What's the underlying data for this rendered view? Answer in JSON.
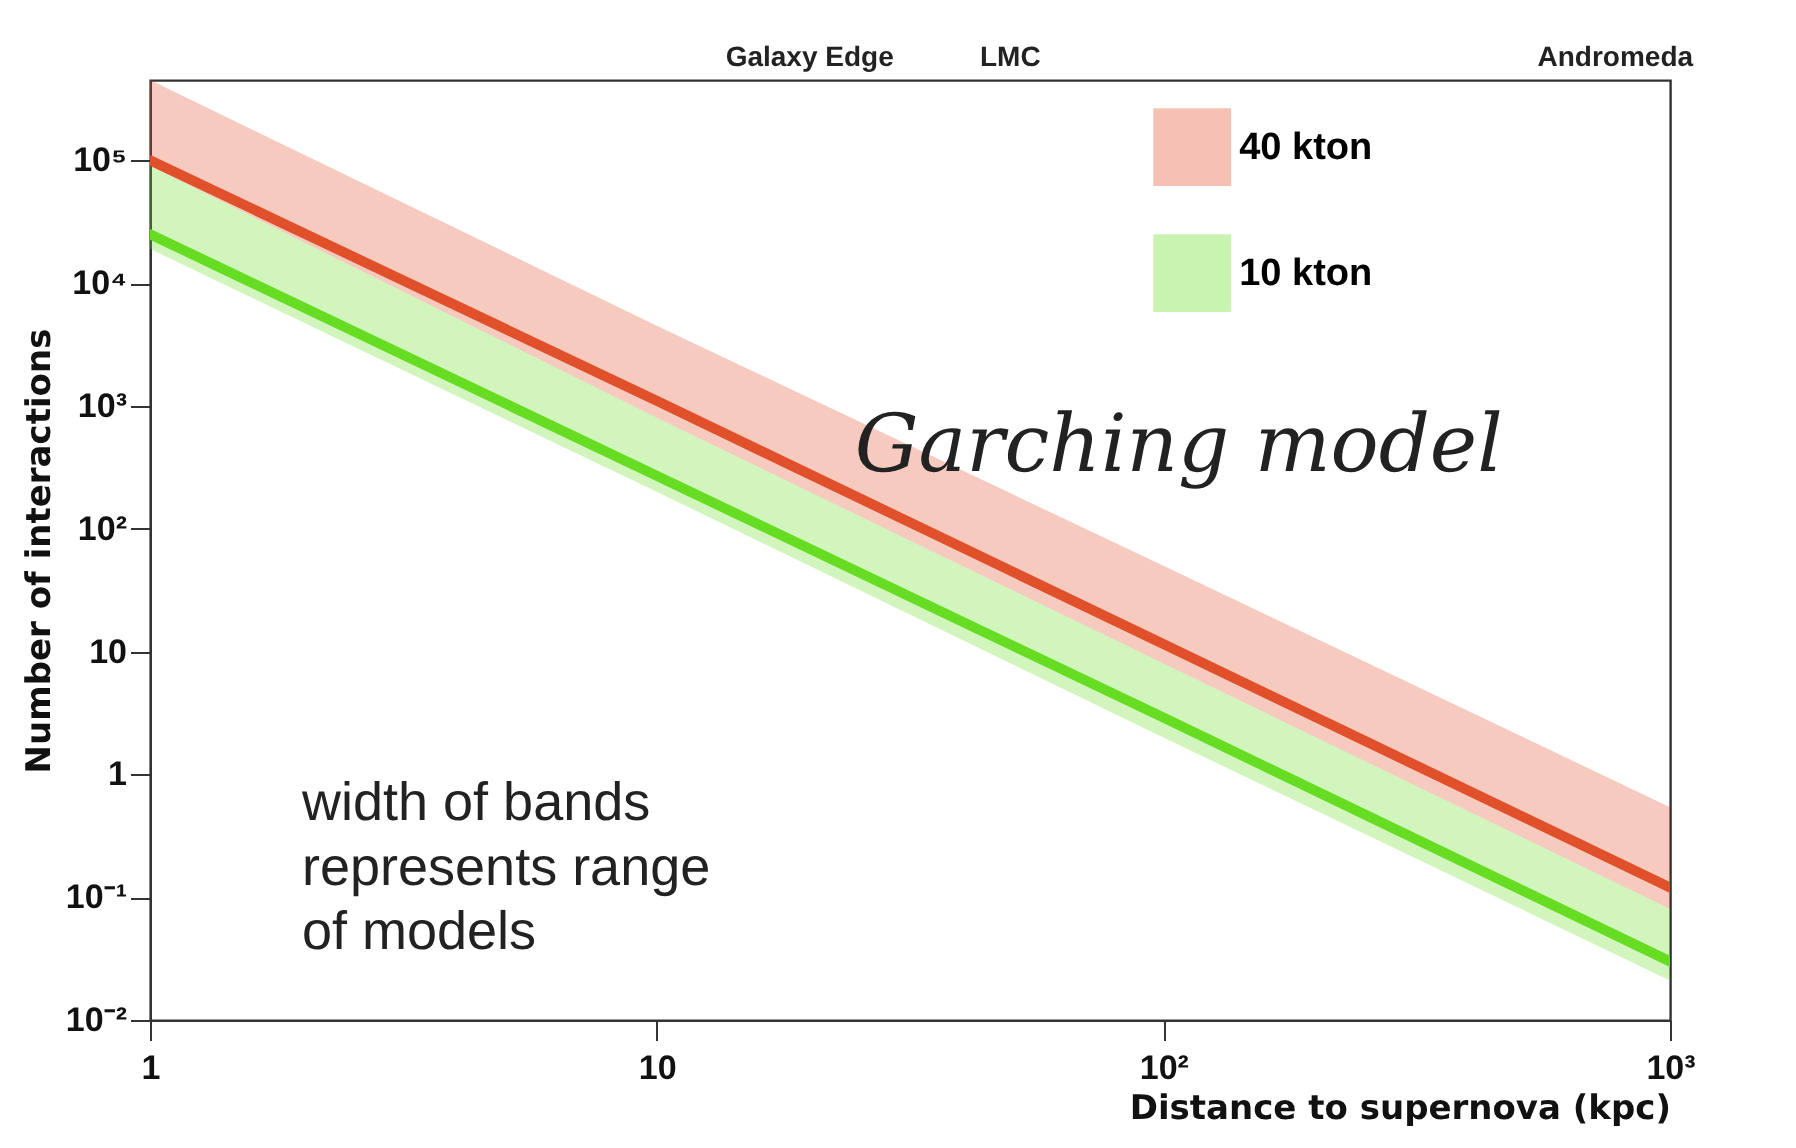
{
  "chart_data": {
    "type": "line",
    "xlabel": "Distance to supernova (kpc)",
    "ylabel": "Number of interactions",
    "x": [
      1,
      10,
      100,
      1000
    ],
    "series": [
      {
        "name": "40 kton",
        "color": "#e0502a",
        "values": [
          100000,
          1100,
          11.5,
          0.12
        ],
        "lower": [
          90000,
          800,
          8,
          0.08
        ],
        "upper": [
          450000,
          4500,
          50,
          0.54
        ]
      },
      {
        "name": "10 kton",
        "color": "#66dd22",
        "values": [
          25000,
          270,
          2.9,
          0.03
        ],
        "lower": [
          19000,
          200,
          2,
          0.021
        ],
        "upper": [
          90000,
          800,
          8,
          0.08
        ]
      }
    ],
    "log": "xy",
    "xlim": [
      1,
      1000
    ],
    "ylim": [
      0.01,
      450000
    ],
    "xticks": [
      1,
      10,
      {
        "value": 100,
        "label": "10²"
      },
      {
        "value": 1000,
        "label": "10³"
      }
    ],
    "yticks": [
      {
        "value": 0.01,
        "label": "10⁻²"
      },
      {
        "value": 0.1,
        "label": "10⁻¹"
      },
      1,
      10,
      {
        "value": 100,
        "label": "10²"
      },
      {
        "value": 1000,
        "label": "10³"
      },
      {
        "value": 10000,
        "label": "10⁴"
      },
      {
        "value": 100000,
        "label": "10⁵"
      }
    ],
    "legend": "top right",
    "grid": false,
    "annotations": [
      "Garching model",
      "width of bands\nrepresents range\nof models",
      "Galaxy Edge",
      "LMC",
      "Andromeda"
    ]
  }
}
